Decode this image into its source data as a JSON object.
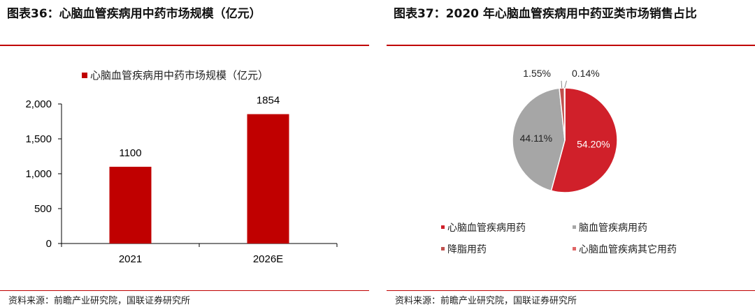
{
  "left": {
    "title": "图表36：心脑血管疾病用中药市场规模（亿元）",
    "source": "资料来源：前瞻产业研究院，国联证券研究所"
  },
  "right": {
    "title": "图表37：2020 年心脑血管疾病用中药亚类市场销售占比",
    "source": "资料来源：前瞻产业研究院，国联证券研究所"
  },
  "colors": {
    "accent": "#c00000",
    "bar": "#c00000",
    "pie_main": "#d0202a",
    "pie_gray": "#a6a6a6",
    "pie_small1": "#c0504d",
    "pie_small2": "#e06666"
  },
  "chart_data": [
    {
      "type": "bar",
      "title": "",
      "legend": [
        "心脑血管疾病用中药市场规模（亿元）"
      ],
      "legend_position": "top",
      "categories": [
        "2021",
        "2026E"
      ],
      "series": [
        {
          "name": "心脑血管疾病用中药市场规模（亿元）",
          "values": [
            1100,
            1854
          ]
        }
      ],
      "data_labels": [
        "1100",
        "1854"
      ],
      "ylim": [
        0,
        2000
      ],
      "yticks": [
        0,
        500,
        1000,
        1500,
        2000
      ],
      "ytick_labels": [
        "0",
        "500",
        "1,000",
        "1,500",
        "2,000"
      ],
      "xlabel": "",
      "ylabel": "",
      "grid": false
    },
    {
      "type": "pie",
      "title": "",
      "legend_position": "bottom",
      "slices": [
        {
          "label": "心脑血管疾病用药",
          "value": 54.2,
          "display": "54.20%"
        },
        {
          "label": "脑血管疾病用药",
          "value": 44.11,
          "display": "44.11%"
        },
        {
          "label": "降脂用药",
          "value": 1.55,
          "display": "1.55%"
        },
        {
          "label": "心脑血管疾病其它用药",
          "value": 0.14,
          "display": "0.14%"
        }
      ]
    }
  ]
}
